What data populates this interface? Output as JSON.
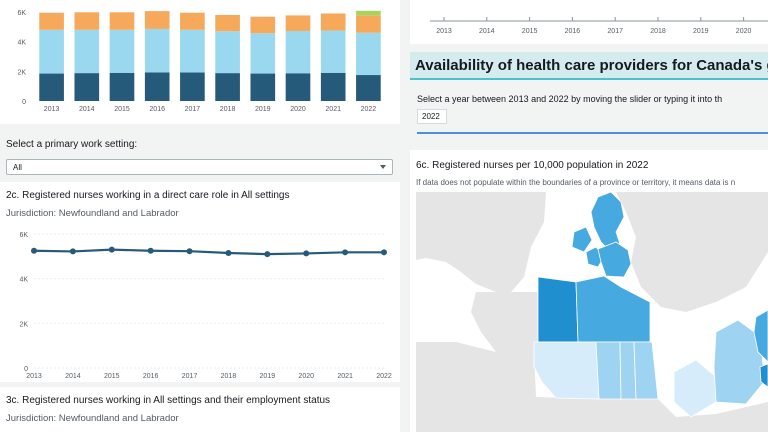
{
  "chart1": {
    "chart_data": {
      "type": "bar",
      "stacked": true,
      "categories": [
        "2013",
        "2014",
        "2015",
        "2016",
        "2017",
        "2018",
        "2019",
        "2020",
        "2021",
        "2022"
      ],
      "series": [
        {
          "color": "#265a7a",
          "values": [
            1850,
            1880,
            1900,
            1930,
            1920,
            1880,
            1850,
            1870,
            1900,
            1750
          ]
        },
        {
          "color": "#9ad8f0",
          "values": [
            2950,
            2920,
            2900,
            2930,
            2880,
            2820,
            2720,
            2850,
            2850,
            2850
          ]
        },
        {
          "color": "#f6a95a",
          "values": [
            1150,
            1180,
            1180,
            1200,
            1150,
            1100,
            1110,
            1050,
            1150,
            1180
          ]
        },
        {
          "color": "#a4d65e",
          "values": [
            0,
            0,
            0,
            0,
            0,
            0,
            0,
            0,
            0,
            300
          ]
        }
      ],
      "yticks": [
        "0",
        "2K",
        "4K",
        "6K"
      ],
      "ylim": [
        0,
        6000
      ]
    }
  },
  "filter": {
    "label": "Select a primary work setting:",
    "value": "All"
  },
  "chart2": {
    "title": "2c. Registered nurses working in a direct care role in All settings",
    "subtitle": "Jurisdiction: Newfoundland and Labrador",
    "chart_data": {
      "type": "line",
      "x": [
        "2013",
        "2014",
        "2015",
        "2016",
        "2017",
        "2018",
        "2019",
        "2020",
        "2021",
        "2022"
      ],
      "values": [
        5250,
        5220,
        5300,
        5250,
        5230,
        5150,
        5100,
        5130,
        5180,
        5180
      ],
      "yticks": [
        "0",
        "2K",
        "4K",
        "6K"
      ],
      "ylim": [
        0,
        6000
      ],
      "color": "#265a7a"
    }
  },
  "chart3": {
    "title": "3c. Registered nurses working in All settings and their employment status",
    "subtitle": "Jurisdiction: Newfoundland and Labrador"
  },
  "topright": {
    "xticks": [
      "2013",
      "2014",
      "2015",
      "2016",
      "2017",
      "2018",
      "2019",
      "2020"
    ]
  },
  "header": {
    "title": "Availability of health care providers for Canada's gr",
    "instruction": "Select a year between 2013 and 2022 by moving the slider or typing it into th",
    "year_value": "2022"
  },
  "map": {
    "title": "6c. Registered nurses per 10,000 population in 2022",
    "note": "If data does not populate within the boundaries of a province or territory, it means data is n",
    "colors": {
      "ocean": "#ffffff",
      "land": "#e5e5e5",
      "dark": "#1f8fd0",
      "mid": "#46a9e0",
      "light": "#9fd3f2",
      "pale": "#d6ecfa"
    }
  }
}
